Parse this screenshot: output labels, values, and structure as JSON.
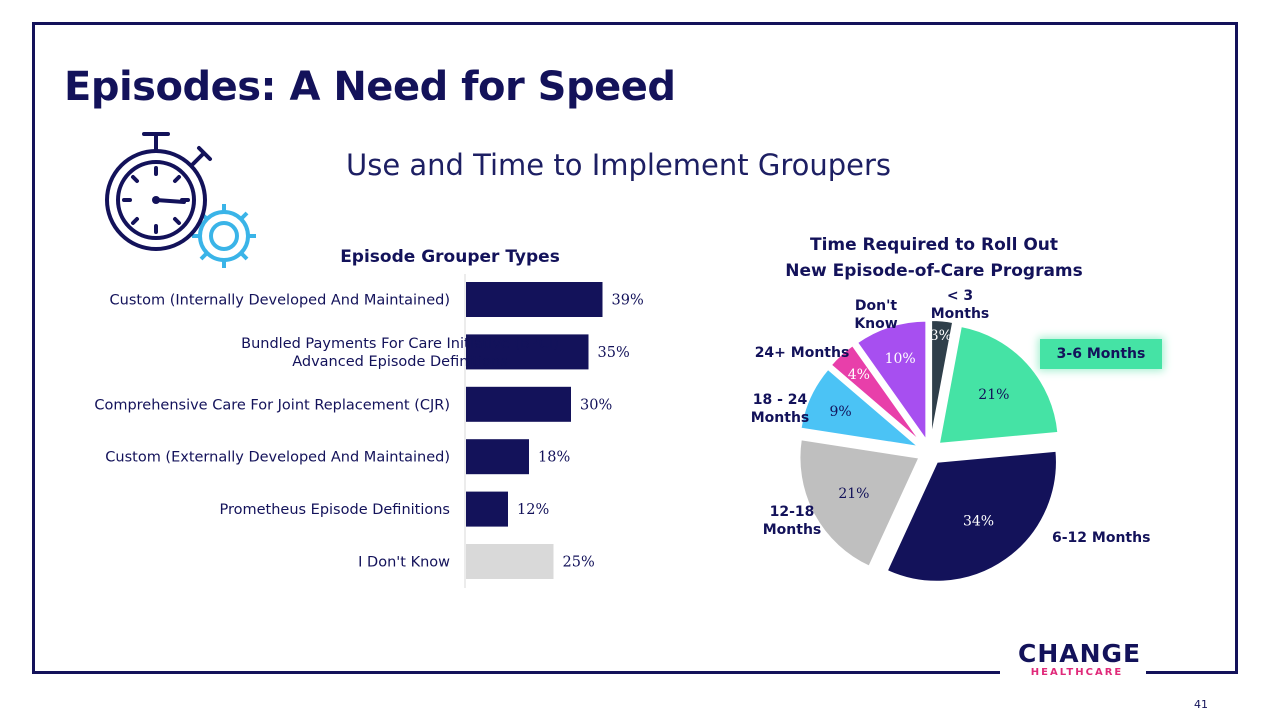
{
  "slide": {
    "title": "Episodes: A Need for Speed",
    "subtitle": "Use and Time to Implement Groupers",
    "page_number": "41",
    "logo_main": "CHANGE",
    "logo_sub": "HEALTHCARE"
  },
  "colors": {
    "navy": "#13125a",
    "gray_bar": "#d9d9d9",
    "mint": "#45e3a5",
    "silver": "#bfbfbf",
    "sky": "#4bc3f5",
    "pink": "#e83faa",
    "violet": "#a74ff0",
    "charcoal": "#2f3f4a",
    "icon_blue": "#3ab4e8"
  },
  "chart_data": [
    {
      "type": "bar",
      "orientation": "horizontal",
      "title": "Episode Grouper Types",
      "categories": [
        "Custom (Internally Developed And Maintained)",
        "Bundled Payments For Care Initiative (BPCI) Advanced Episode Definitions",
        "Comprehensive Care For Joint Replacement (CJR)",
        "Custom (Externally Developed And Maintained)",
        "Prometheus Episode Definitions",
        "I Don't Know"
      ],
      "values": [
        39,
        35,
        30,
        18,
        12,
        25
      ],
      "data_labels": [
        "39%",
        "35%",
        "30%",
        "18%",
        "12%",
        "25%"
      ],
      "xlim": [
        0,
        100
      ],
      "grid": false,
      "legend": "none"
    },
    {
      "type": "pie",
      "title": "Time Required to Roll Out New Episode-of-Care Programs",
      "slices": [
        {
          "label": "< 3 Months",
          "value": 3,
          "data_label": "3%"
        },
        {
          "label": "3-6 Months",
          "value": 21,
          "data_label": "21%"
        },
        {
          "label": "6-12 Months",
          "value": 34,
          "data_label": "34%"
        },
        {
          "label": "12-18 Months",
          "value": 21,
          "data_label": "21%"
        },
        {
          "label": "18 - 24 Months",
          "value": 9,
          "data_label": "9%"
        },
        {
          "label": "24+ Months",
          "value": 4,
          "data_label": "4%"
        },
        {
          "label": "Don't Know",
          "value": 10,
          "data_label": "10%"
        }
      ],
      "legend": "right"
    }
  ]
}
